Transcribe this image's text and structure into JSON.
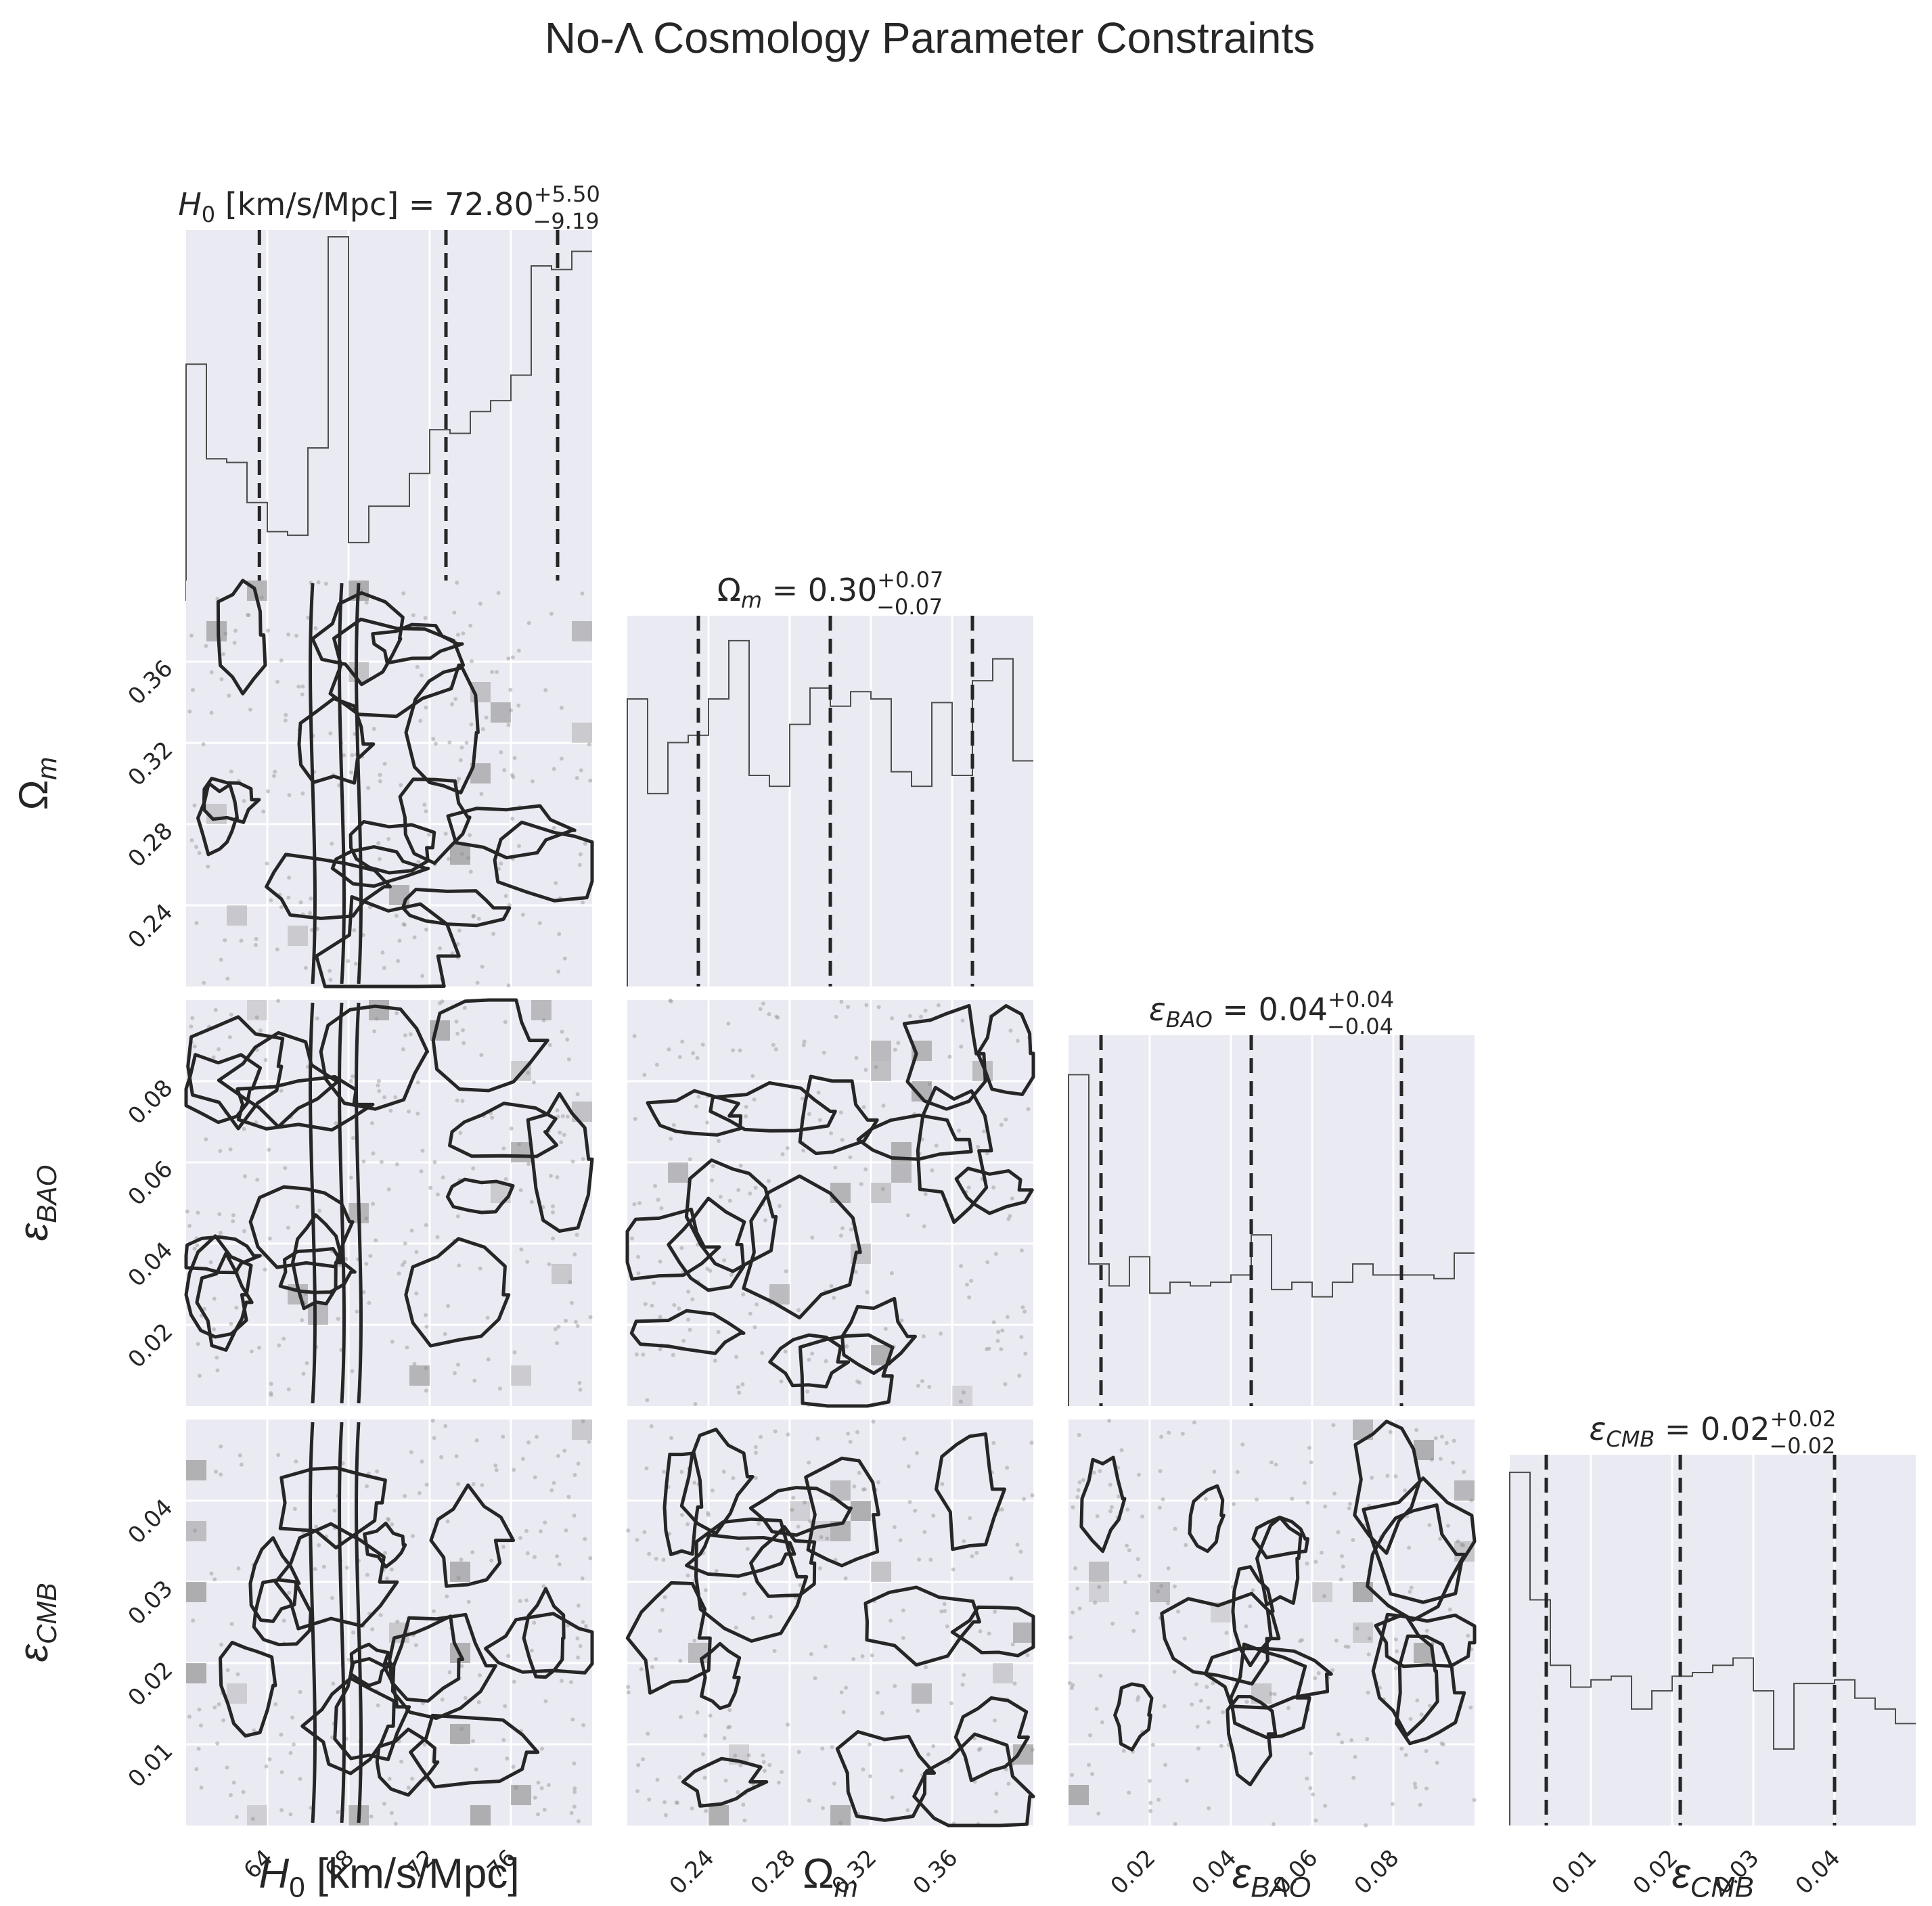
{
  "figure_title": "No-Λ Cosmology Parameter Constraints",
  "colors": {
    "panel_bg": "#eaeaf2",
    "grid": "#ffffff",
    "contour": "#262626",
    "quantile_line": "#262626",
    "hist_line": "#4d4d4d",
    "shade": "#8a8a8a",
    "points": "#9a9a9a"
  },
  "chart_data": {
    "type": "corner",
    "parameters": [
      {
        "key": "H0",
        "label": "H_0 [km/s/Mpc]",
        "range": [
          60.0,
          80.0
        ],
        "ticks": [
          64,
          68,
          72,
          76
        ],
        "tick_labels": [
          "64",
          "68",
          "72",
          "76"
        ],
        "title": {
          "sym": "H",
          "sub": "0",
          "rest": " [km/s/Mpc] = 72.80",
          "plus": "+5.50",
          "minus": "−9.19"
        },
        "quantiles": [
          63.61,
          72.8,
          78.3
        ],
        "hist": [
          0.65,
          0.39,
          0.38,
          0.27,
          0.19,
          0.18,
          0.42,
          1.0,
          0.16,
          0.26,
          0.26,
          0.35,
          0.47,
          0.46,
          0.52,
          0.55,
          0.62,
          0.92,
          0.91,
          0.96
        ]
      },
      {
        "key": "Om",
        "label": "Ω_m",
        "range": [
          0.2,
          0.4
        ],
        "ticks": [
          0.24,
          0.28,
          0.32,
          0.36
        ],
        "tick_labels": [
          "0.24",
          "0.28",
          "0.32",
          "0.36"
        ],
        "title": {
          "sym": "Ω",
          "sub": "m",
          "rest": " = 0.30",
          "plus": "+0.07",
          "minus": "−0.07"
        },
        "quantiles": [
          0.235,
          0.3,
          0.37
        ],
        "hist": [
          0.79,
          0.53,
          0.67,
          0.69,
          0.79,
          0.95,
          0.58,
          0.55,
          0.72,
          0.82,
          0.77,
          0.81,
          0.79,
          0.59,
          0.55,
          0.78,
          0.58,
          0.84,
          0.9,
          0.62
        ]
      },
      {
        "key": "eBAO",
        "label": "ε_BAO",
        "range": [
          0.0,
          0.1
        ],
        "ticks": [
          0.02,
          0.04,
          0.06,
          0.08
        ],
        "tick_labels": [
          "0.02",
          "0.04",
          "0.06",
          "0.08"
        ],
        "title": {
          "sym": "ε",
          "sub": "BAO",
          "rest": " = 0.04",
          "plus": "+0.04",
          "minus": "−0.04"
        },
        "quantiles": [
          0.008,
          0.045,
          0.082
        ],
        "hist": [
          0.91,
          0.39,
          0.33,
          0.41,
          0.31,
          0.34,
          0.33,
          0.34,
          0.36,
          0.47,
          0.32,
          0.34,
          0.3,
          0.34,
          0.39,
          0.36,
          0.36,
          0.36,
          0.35,
          0.42
        ]
      },
      {
        "key": "eCMB",
        "label": "ε_CMB",
        "range": [
          0.0,
          0.05
        ],
        "ticks": [
          0.01,
          0.02,
          0.03,
          0.04
        ],
        "tick_labels": [
          "0.01",
          "0.02",
          "0.03",
          "0.04"
        ],
        "title": {
          "sym": "ε",
          "sub": "CMB",
          "rest": " = 0.02",
          "plus": "+0.02",
          "minus": "−0.02"
        },
        "quantiles": [
          0.0045,
          0.021,
          0.04
        ],
        "hist": [
          0.97,
          0.62,
          0.44,
          0.38,
          0.4,
          0.41,
          0.32,
          0.37,
          0.41,
          0.42,
          0.44,
          0.46,
          0.37,
          0.21,
          0.39,
          0.39,
          0.4,
          0.35,
          0.32,
          0.28
        ]
      }
    ],
    "grid": "on",
    "legend": "none"
  }
}
